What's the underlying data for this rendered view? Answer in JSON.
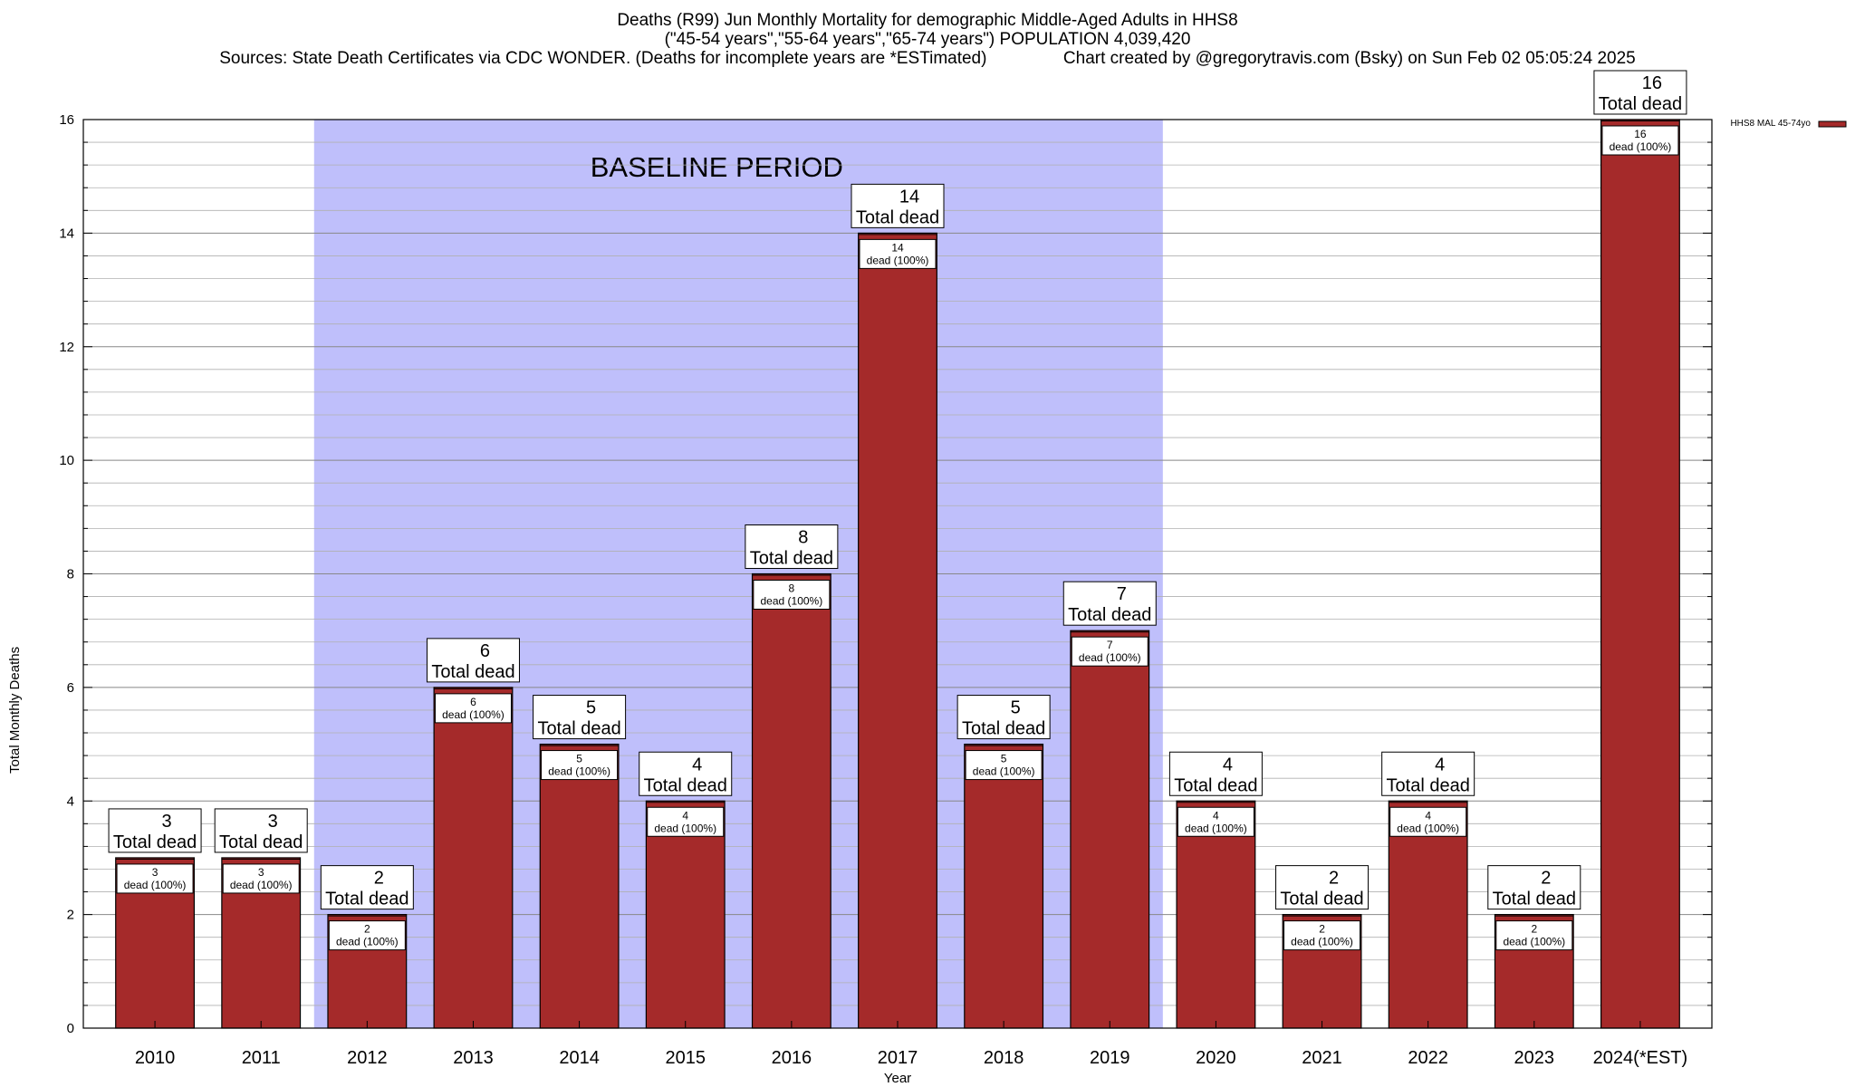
{
  "title_lines": [
    "Deaths (R99) Jun Monthly Mortality for demographic Middle-Aged Adults in HHS8",
    "(\"45-54 years\",\"55-64 years\",\"65-74 years\") POPULATION 4,039,420",
    "Sources: State Death Certificates via CDC WONDER. (Deaths for incomplete years are *ESTimated)                Chart created by @gregorytravis.com (Bsky) on Sun Feb 02 05:05:24 2025"
  ],
  "colors": {
    "bar": "#a52a2a",
    "baseline_shade": "#bfbffb",
    "grid": "#b0b0b0"
  },
  "chart_data": {
    "type": "bar",
    "categories": [
      "2010",
      "2011",
      "2012",
      "2013",
      "2014",
      "2015",
      "2016",
      "2017",
      "2018",
      "2019",
      "2020",
      "2021",
      "2022",
      "2023",
      "2024(*EST)"
    ],
    "series": [
      {
        "name": "HHS8 MAL 45-74yo",
        "values": [
          3,
          3,
          2,
          6,
          5,
          4,
          8,
          14,
          5,
          7,
          4,
          2,
          4,
          2,
          16
        ]
      }
    ],
    "xlabel": "Year",
    "ylabel": "Total Monthly Deaths",
    "ylim": [
      0,
      16
    ],
    "yticks": [
      0,
      2,
      4,
      6,
      8,
      10,
      12,
      14,
      16
    ],
    "grid": true,
    "legend_position": "top-right, outside plot",
    "shaded_region": {
      "from": "2012",
      "to": "2019",
      "label": "BASELINE PERIOD"
    },
    "outer_label_suffix": "Total dead",
    "inner_label_suffix": "dead (100%)"
  }
}
